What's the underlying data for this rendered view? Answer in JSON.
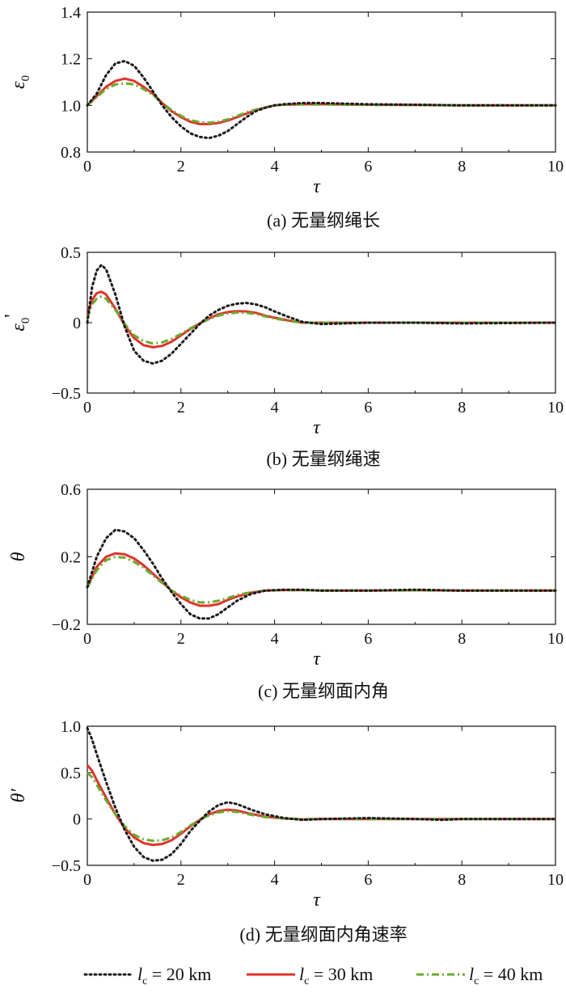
{
  "legend": {
    "items": [
      {
        "prefix": "l",
        "sub": "c",
        "text": " = 20 km",
        "color": "#1a1a1a",
        "dash": "2,4"
      },
      {
        "prefix": "l",
        "sub": "c",
        "text": " = 30 km",
        "color": "#e0332b",
        "dash": ""
      },
      {
        "prefix": "l",
        "sub": "c",
        "text": " = 40 km",
        "color": "#6aaa2e",
        "dash": "9,4,2,4"
      }
    ]
  },
  "chart_data": [
    {
      "type": "line",
      "caption": "(a) 无量纲绳长",
      "xlabel": "τ",
      "ylabel": "ε",
      "ylabel_sub": "0",
      "ylabel_prime": "",
      "xlim": [
        0,
        10
      ],
      "ylim": [
        0.8,
        1.4
      ],
      "xticks": [
        "0",
        "2",
        "4",
        "6",
        "8",
        "10"
      ],
      "yticks": [
        {
          "v": 0.8,
          "label": "0.8"
        },
        {
          "v": 1.0,
          "label": "1.0"
        },
        {
          "v": 1.2,
          "label": "1.2"
        },
        {
          "v": 1.4,
          "label": "1.4"
        }
      ],
      "x": [
        0,
        0.2,
        0.4,
        0.6,
        0.8,
        1.0,
        1.2,
        1.4,
        1.6,
        1.8,
        2.0,
        2.2,
        2.4,
        2.6,
        2.8,
        3.0,
        3.2,
        3.4,
        3.6,
        3.8,
        4.0,
        4.2,
        4.6,
        5.0,
        6.0,
        7.0,
        8.0,
        10.0
      ],
      "series": [
        {
          "name": "20km",
          "values": [
            1.0,
            1.05,
            1.13,
            1.18,
            1.19,
            1.17,
            1.12,
            1.06,
            1.0,
            0.95,
            0.91,
            0.88,
            0.865,
            0.86,
            0.87,
            0.89,
            0.92,
            0.95,
            0.975,
            0.99,
            1.0,
            1.005,
            1.01,
            1.01,
            1.005,
            1.003,
            1.0,
            1.0
          ]
        },
        {
          "name": "30km",
          "values": [
            1.0,
            1.04,
            1.08,
            1.105,
            1.115,
            1.105,
            1.08,
            1.05,
            1.01,
            0.975,
            0.95,
            0.93,
            0.92,
            0.92,
            0.925,
            0.935,
            0.95,
            0.965,
            0.98,
            0.99,
            1.0,
            1.003,
            1.005,
            1.005,
            1.003,
            1.002,
            1.0,
            1.0
          ]
        },
        {
          "name": "40km",
          "values": [
            1.0,
            1.035,
            1.07,
            1.09,
            1.095,
            1.09,
            1.07,
            1.045,
            1.01,
            0.98,
            0.955,
            0.937,
            0.928,
            0.926,
            0.93,
            0.94,
            0.955,
            0.97,
            0.982,
            0.992,
            1.0,
            1.003,
            1.004,
            1.004,
            1.002,
            1.001,
            1.0,
            1.0
          ]
        }
      ]
    },
    {
      "type": "line",
      "caption": "(b) 无量纲绳速",
      "xlabel": "τ",
      "ylabel": "ε",
      "ylabel_sub": "0",
      "ylabel_prime": "'",
      "xlim": [
        0,
        10
      ],
      "ylim": [
        -0.5,
        0.5
      ],
      "xticks": [
        "0",
        "2",
        "4",
        "6",
        "8",
        "10"
      ],
      "yticks": [
        {
          "v": -0.5,
          "label": "−0.5"
        },
        {
          "v": 0,
          "label": "0"
        },
        {
          "v": 0.5,
          "label": "0.5"
        }
      ],
      "x": [
        0,
        0.1,
        0.2,
        0.3,
        0.4,
        0.6,
        0.8,
        1.0,
        1.2,
        1.4,
        1.6,
        1.8,
        2.0,
        2.2,
        2.4,
        2.6,
        2.8,
        3.0,
        3.2,
        3.4,
        3.6,
        3.8,
        4.0,
        4.3,
        4.6,
        5.0,
        6.0,
        7.0,
        8.0,
        10.0
      ],
      "series": [
        {
          "name": "20km",
          "values": [
            0.0,
            0.25,
            0.37,
            0.41,
            0.38,
            0.2,
            -0.03,
            -0.2,
            -0.27,
            -0.29,
            -0.27,
            -0.22,
            -0.15,
            -0.08,
            -0.01,
            0.05,
            0.09,
            0.12,
            0.135,
            0.14,
            0.13,
            0.11,
            0.08,
            0.04,
            0.005,
            -0.01,
            0.0,
            0.0,
            -0.005,
            0.0
          ]
        },
        {
          "name": "30km",
          "values": [
            0.05,
            0.16,
            0.21,
            0.22,
            0.2,
            0.1,
            -0.02,
            -0.11,
            -0.16,
            -0.175,
            -0.165,
            -0.135,
            -0.09,
            -0.045,
            -0.005,
            0.03,
            0.06,
            0.075,
            0.082,
            0.08,
            0.07,
            0.05,
            0.035,
            0.015,
            0.0,
            0.0,
            0.0,
            0.0,
            0.0,
            0.0
          ]
        },
        {
          "name": "40km",
          "values": [
            0.03,
            0.13,
            0.17,
            0.185,
            0.17,
            0.09,
            -0.01,
            -0.09,
            -0.13,
            -0.148,
            -0.14,
            -0.115,
            -0.08,
            -0.04,
            -0.005,
            0.025,
            0.05,
            0.065,
            0.072,
            0.07,
            0.062,
            0.045,
            0.03,
            0.012,
            0.0,
            0.0,
            0.0,
            0.0,
            0.0,
            0.0
          ]
        }
      ]
    },
    {
      "type": "line",
      "caption": "(c) 无量纲面内角",
      "xlabel": "τ",
      "ylabel": "θ",
      "ylabel_sub": "",
      "ylabel_prime": "",
      "xlim": [
        0,
        10
      ],
      "ylim": [
        -0.2,
        0.6
      ],
      "xticks": [
        "0",
        "2",
        "4",
        "6",
        "8",
        "10"
      ],
      "yticks": [
        {
          "v": -0.2,
          "label": "−0.2"
        },
        {
          "v": 0.2,
          "label": "0.2"
        },
        {
          "v": 0.6,
          "label": "0.6"
        }
      ],
      "x": [
        0,
        0.2,
        0.4,
        0.6,
        0.8,
        1.0,
        1.2,
        1.4,
        1.6,
        1.8,
        2.0,
        2.2,
        2.4,
        2.6,
        2.8,
        3.0,
        3.2,
        3.5,
        3.8,
        4.2,
        4.6,
        5.0,
        6.0,
        7.0,
        8.0,
        10.0
      ],
      "series": [
        {
          "name": "20km",
          "values": [
            0.02,
            0.2,
            0.31,
            0.36,
            0.35,
            0.31,
            0.24,
            0.16,
            0.07,
            -0.01,
            -0.08,
            -0.14,
            -0.165,
            -0.165,
            -0.14,
            -0.1,
            -0.06,
            -0.02,
            0.0,
            0.005,
            0.005,
            0.0,
            0.0,
            0.005,
            0.0,
            0.0
          ]
        },
        {
          "name": "30km",
          "values": [
            0.02,
            0.14,
            0.2,
            0.22,
            0.215,
            0.19,
            0.15,
            0.1,
            0.05,
            0.0,
            -0.04,
            -0.07,
            -0.09,
            -0.09,
            -0.08,
            -0.055,
            -0.035,
            -0.012,
            0.0,
            0.003,
            0.003,
            0.0,
            0.0,
            0.002,
            0.0,
            0.0
          ]
        },
        {
          "name": "40km",
          "values": [
            0.02,
            0.12,
            0.18,
            0.2,
            0.195,
            0.17,
            0.135,
            0.09,
            0.045,
            0.0,
            -0.03,
            -0.055,
            -0.07,
            -0.07,
            -0.06,
            -0.045,
            -0.025,
            -0.01,
            0.0,
            0.002,
            0.002,
            0.0,
            0.0,
            0.001,
            0.0,
            0.0
          ]
        }
      ]
    },
    {
      "type": "line",
      "caption": "(d) 无量纲面内角速率",
      "xlabel": "τ",
      "ylabel": "θ′",
      "ylabel_sub": "",
      "ylabel_prime": "",
      "xlim": [
        0,
        10
      ],
      "ylim": [
        -0.5,
        1.0
      ],
      "xticks": [
        "0",
        "2",
        "4",
        "6",
        "8",
        "10"
      ],
      "yticks": [
        {
          "v": -0.5,
          "label": "−0.5"
        },
        {
          "v": 0,
          "label": "0"
        },
        {
          "v": 0.5,
          "label": "0.5"
        },
        {
          "v": 1.0,
          "label": "1.0"
        }
      ],
      "x": [
        0,
        0.1,
        0.2,
        0.4,
        0.6,
        0.8,
        1.0,
        1.2,
        1.4,
        1.6,
        1.8,
        2.0,
        2.2,
        2.4,
        2.6,
        2.8,
        3.0,
        3.2,
        3.5,
        3.8,
        4.2,
        4.6,
        5.0,
        6.0,
        7.0,
        7.6,
        8.0,
        10.0
      ],
      "series": [
        {
          "name": "20km",
          "values": [
            0.98,
            0.86,
            0.7,
            0.4,
            0.12,
            -0.12,
            -0.3,
            -0.41,
            -0.45,
            -0.44,
            -0.38,
            -0.27,
            -0.13,
            -0.02,
            0.08,
            0.15,
            0.18,
            0.16,
            0.1,
            0.05,
            0.01,
            -0.01,
            0.0,
            0.01,
            0.0,
            -0.01,
            0.0,
            0.0
          ]
        },
        {
          "name": "30km",
          "values": [
            0.58,
            0.52,
            0.42,
            0.23,
            0.05,
            -0.1,
            -0.2,
            -0.26,
            -0.28,
            -0.27,
            -0.23,
            -0.16,
            -0.08,
            -0.01,
            0.05,
            0.085,
            0.1,
            0.09,
            0.055,
            0.025,
            0.005,
            -0.005,
            0.0,
            0.0,
            0.0,
            0.0,
            0.0,
            0.0
          ]
        },
        {
          "name": "40km",
          "values": [
            0.5,
            0.45,
            0.37,
            0.2,
            0.05,
            -0.08,
            -0.17,
            -0.22,
            -0.235,
            -0.23,
            -0.2,
            -0.14,
            -0.07,
            -0.01,
            0.04,
            0.07,
            0.085,
            0.075,
            0.045,
            0.02,
            0.005,
            -0.003,
            0.0,
            0.0,
            0.0,
            0.0,
            0.0,
            0.0
          ]
        }
      ]
    }
  ]
}
